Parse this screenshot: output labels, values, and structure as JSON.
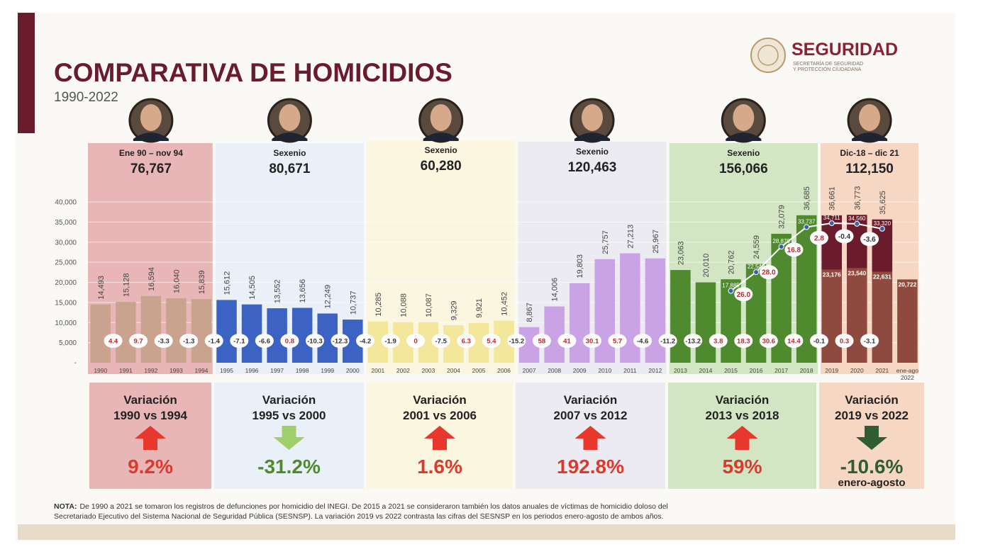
{
  "header": {
    "title": "COMPARATIVA DE HOMICIDIOS",
    "subtitle": "1990-2022",
    "logo_main": "SEGURIDAD",
    "logo_sub1": "SECRETARÍA DE SEGURIDAD",
    "logo_sub2": "Y PROTECCIÓN CIUDADANA"
  },
  "colors": {
    "accent": "#6a1c2c",
    "red_arrow": "#e8372c",
    "red_text": "#d93b2e",
    "green_text": "#4f8a2f",
    "arrow_light_green": "#9fcf6a",
    "arrow_dark_green": "#2f5e34"
  },
  "periods": [
    {
      "label": "Ene 90 – nov 94",
      "total": "76,767",
      "bg": "#e8b6b6",
      "bar": "#c9a38e",
      "var_line1": "Variación",
      "var_line2": "1990 vs 1994",
      "var_value": "9.2%",
      "var_extra": "",
      "arrow": "up",
      "value_color": "#d93b2e",
      "arrow_color": "#e8372c"
    },
    {
      "label": "Sexenio",
      "total": "80,671",
      "bg": "#e9f0f8",
      "bar": "#3c63c4",
      "var_line1": "Variación",
      "var_line2": "1995 vs 2000",
      "var_value": "-31.2%",
      "var_extra": "",
      "arrow": "down",
      "value_color": "#4f8a2f",
      "arrow_color": "#9fcf6a"
    },
    {
      "label": "Sexenio",
      "total": "60,280",
      "bg": "#fbf6df",
      "bar": "#f2e79a",
      "var_line1": "Variación",
      "var_line2": "2001 vs 2006",
      "var_value": "1.6%",
      "var_extra": "",
      "arrow": "up",
      "value_color": "#d93b2e",
      "arrow_color": "#e8372c"
    },
    {
      "label": "Sexenio",
      "total": "120,463",
      "bg": "#ecebf2",
      "bar": "#caa3e6",
      "var_line1": "Variación",
      "var_line2": "2007 vs 2012",
      "var_value": "192.8%",
      "var_extra": "",
      "arrow": "up",
      "value_color": "#d93b2e",
      "arrow_color": "#e8372c"
    },
    {
      "label": "Sexenio",
      "total": "156,066",
      "bg": "#d3e6c4",
      "bar": "#4f8a2f",
      "var_line1": "Variación",
      "var_line2": "2013 vs 2018",
      "var_value": "59%",
      "var_extra": "",
      "arrow": "up",
      "value_color": "#d93b2e",
      "arrow_color": "#e8372c"
    },
    {
      "label": "Dic-18 – dic 21",
      "total": "112,150",
      "bg": "#f6d7c4",
      "bar": "#8e4a3f",
      "var_line1": "Variación",
      "var_line2": "2019 vs 2022",
      "var_value": "-10.6%",
      "var_extra": "enero-agosto",
      "arrow": "down",
      "value_color": "#2f5e34",
      "arrow_color": "#2f5e34"
    }
  ],
  "chart_data": {
    "type": "bar",
    "title": "COMPARATIVA DE HOMICIDIOS",
    "subtitle": "1990-2022",
    "ylim": [
      0,
      40000
    ],
    "y_ticks": [
      "5,000",
      "10,000",
      "15,000",
      "20,000",
      "25,000",
      "30,000",
      "35,000",
      "40,000"
    ],
    "y_tick_values": [
      5000,
      10000,
      15000,
      20000,
      25000,
      30000,
      35000,
      40000
    ],
    "categories": [
      "1990",
      "1991",
      "1992",
      "1993",
      "1994",
      "1995",
      "1996",
      "1997",
      "1998",
      "1999",
      "2000",
      "2001",
      "2002",
      "2003",
      "2004",
      "2005",
      "2006",
      "2007",
      "2008",
      "2009",
      "2010",
      "2011",
      "2012",
      "2013",
      "2014",
      "2015",
      "2016",
      "2017",
      "2018",
      "2019",
      "2020",
      "2021",
      "ene-ago 2022"
    ],
    "period_index": [
      0,
      0,
      0,
      0,
      0,
      1,
      1,
      1,
      1,
      1,
      1,
      2,
      2,
      2,
      2,
      2,
      2,
      3,
      3,
      3,
      3,
      3,
      3,
      4,
      4,
      4,
      4,
      4,
      4,
      5,
      5,
      5,
      5
    ],
    "values": [
      14493,
      15128,
      16594,
      16040,
      15839,
      15612,
      14505,
      13552,
      13656,
      12249,
      10737,
      10285,
      10088,
      10087,
      9329,
      9921,
      10452,
      8867,
      14006,
      19803,
      25757,
      27213,
      25967,
      23063,
      20010,
      20762,
      24559,
      32079,
      36685,
      36661,
      36773,
      35625,
      20722
    ],
    "value_labels": [
      "14,493",
      "15,128",
      "16,594",
      "16,040",
      "15,839",
      "15,612",
      "14,505",
      "13,552",
      "13,656",
      "12,249",
      "10,737",
      "10,285",
      "10,088",
      "10,087",
      "9,329",
      "9,921",
      "10,452",
      "8,867",
      "14,006",
      "19,803",
      "25,757",
      "27,213",
      "25,967",
      "23,063",
      "20,010",
      "20,762",
      "24,559",
      "32,079",
      "36,685",
      "36,661",
      "36,773",
      "35,625",
      ""
    ],
    "annual_change": [
      "4.4",
      "9.7",
      "-3.3",
      "-1.3",
      "-1.4",
      "-7.1",
      "-6.6",
      "0.8",
      "-10.3",
      "-12.3",
      "-4.2",
      "-1.9",
      "0",
      "-7.5",
      "6.3",
      "5.4",
      "-15.2",
      "58",
      "41",
      "30.1",
      "5.7",
      "-4.6",
      "-11.2",
      "-13.2",
      "3.8",
      "18.3",
      "30.6",
      "14.4",
      "-0.1",
      "0.3",
      "-3.1"
    ],
    "sesnsp_series": {
      "name": "SESNSP",
      "categories": [
        "2015",
        "2016",
        "2017",
        "2018",
        "2019",
        "2020",
        "2021"
      ],
      "values": [
        17885,
        22540,
        28870,
        33737,
        34711,
        34560,
        33320
      ],
      "labels": [
        "17,885",
        "22,540",
        "28,870",
        "33,737",
        "34,711",
        "34,560",
        "33,320"
      ],
      "change": [
        "26.0",
        "28.0",
        "16.8",
        "2.8",
        "-0.4",
        "-3.6"
      ]
    },
    "enero_agosto_values": {
      "categories": [
        "2019",
        "2020",
        "2021",
        "ene-ago 2022"
      ],
      "values": [
        23176,
        23540,
        22631,
        20722
      ],
      "labels": [
        "23,176",
        "23,540",
        "22,631",
        "20,722"
      ]
    }
  },
  "note": {
    "bold": "NOTA:",
    "line1": "De 1990 a 2021 se tomaron los registros de defunciones por homicidio del INEGI. De 2015 a 2021 se consideraron también los datos anuales de víctimas de homicidio doloso del",
    "line2": "Secretariado Ejecutivo del Sistema Nacional de Seguridad Pública (SESNSP). La variación 2019 vs 2022 contrasta las cifras del SESNSP en los periodos enero-agosto de ambos años."
  }
}
